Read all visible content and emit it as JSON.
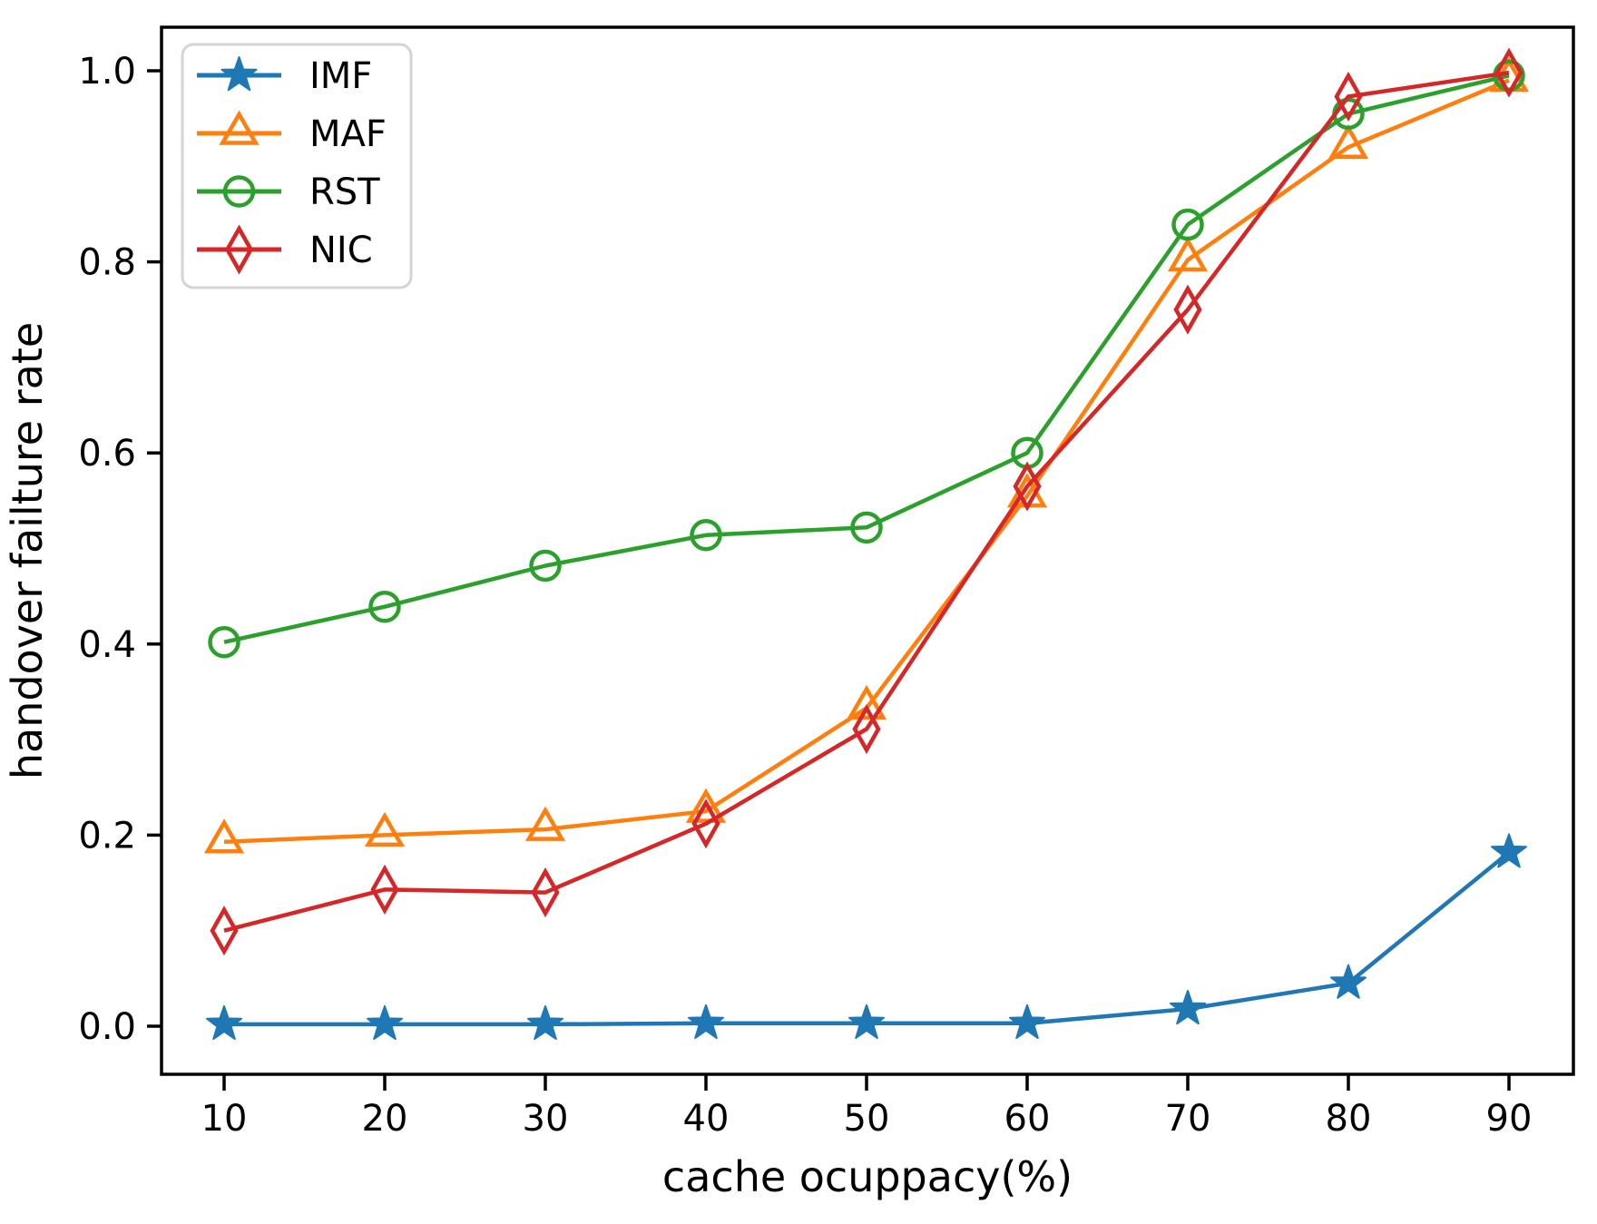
{
  "chart_data": {
    "type": "line",
    "title": "",
    "xlabel": "cache ocuppacy(%)",
    "ylabel": "handover failture rate",
    "x": [
      10,
      20,
      30,
      40,
      50,
      60,
      70,
      80,
      90
    ],
    "xticks": [
      10,
      20,
      30,
      40,
      50,
      60,
      70,
      80,
      90
    ],
    "yticks": [
      0.0,
      0.2,
      0.4,
      0.6,
      0.8,
      1.0
    ],
    "xlim": [
      6,
      94
    ],
    "ylim": [
      -0.05,
      1.05
    ],
    "grid": false,
    "legend_position": "upper left",
    "series": [
      {
        "name": "IMF",
        "color": "#1f77b4",
        "marker": "star",
        "values": [
          0.002,
          0.002,
          0.002,
          0.003,
          0.003,
          0.003,
          0.018,
          0.045,
          0.182
        ]
      },
      {
        "name": "MAF",
        "color": "#ff7f0e",
        "marker": "triangle",
        "values": [
          0.193,
          0.2,
          0.206,
          0.225,
          0.333,
          0.555,
          0.802,
          0.92,
          0.99
        ]
      },
      {
        "name": "RST",
        "color": "#2ca02c",
        "marker": "circle",
        "values": [
          0.402,
          0.439,
          0.482,
          0.514,
          0.522,
          0.6,
          0.839,
          0.955,
          0.995
        ]
      },
      {
        "name": "NIC",
        "color": "#d62728",
        "marker": "diamond",
        "values": [
          0.1,
          0.143,
          0.14,
          0.212,
          0.311,
          0.565,
          0.75,
          0.973,
          0.998
        ]
      }
    ]
  }
}
